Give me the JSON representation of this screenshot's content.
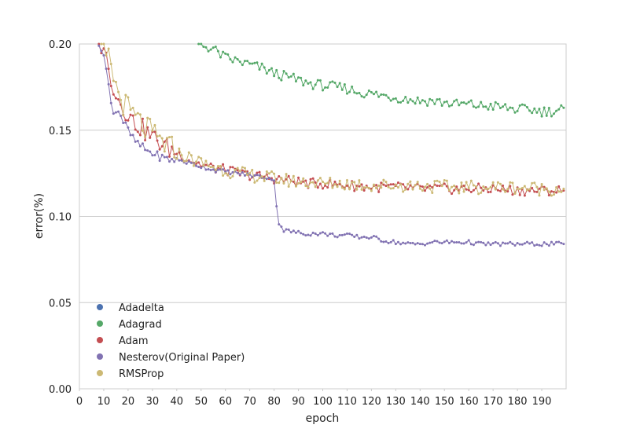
{
  "chart_data": {
    "type": "line",
    "title": "",
    "xlabel": "epoch",
    "ylabel": "error(%)",
    "xlim": [
      0,
      200
    ],
    "ylim": [
      0.0,
      0.2
    ],
    "x_ticks": [
      "0",
      "10",
      "20",
      "30",
      "40",
      "50",
      "60",
      "70",
      "80",
      "90",
      "100",
      "110",
      "120",
      "130",
      "140",
      "150",
      "160",
      "170",
      "180",
      "190"
    ],
    "y_ticks": [
      "0.00",
      "0.05",
      "0.10",
      "0.15",
      "0.20"
    ],
    "grid": "horizontal",
    "legend_position": "lower-left",
    "series": [
      {
        "name": "Adadelta",
        "color": "#4c72b0",
        "points": []
      },
      {
        "name": "Adagrad",
        "color": "#55a868",
        "points": [
          [
            49,
            0.2
          ],
          [
            55,
            0.197
          ],
          [
            60,
            0.192
          ],
          [
            65,
            0.19
          ],
          [
            70,
            0.188
          ],
          [
            75,
            0.186
          ],
          [
            80,
            0.183
          ],
          [
            85,
            0.181
          ],
          [
            90,
            0.179
          ],
          [
            95,
            0.177
          ],
          [
            100,
            0.176
          ],
          [
            105,
            0.175
          ],
          [
            110,
            0.174
          ],
          [
            115,
            0.172
          ],
          [
            120,
            0.171
          ],
          [
            125,
            0.17
          ],
          [
            130,
            0.169
          ],
          [
            135,
            0.168
          ],
          [
            140,
            0.167
          ],
          [
            145,
            0.167
          ],
          [
            150,
            0.166
          ],
          [
            155,
            0.165
          ],
          [
            160,
            0.165
          ],
          [
            165,
            0.164
          ],
          [
            170,
            0.164
          ],
          [
            175,
            0.163
          ],
          [
            180,
            0.162
          ],
          [
            185,
            0.162
          ],
          [
            190,
            0.161
          ],
          [
            195,
            0.161
          ],
          [
            199,
            0.163
          ]
        ]
      },
      {
        "name": "Adam",
        "color": "#c44e52",
        "points": [
          [
            8,
            0.2
          ],
          [
            10,
            0.2
          ],
          [
            12,
            0.184
          ],
          [
            14,
            0.176
          ],
          [
            16,
            0.168
          ],
          [
            18,
            0.163
          ],
          [
            20,
            0.16
          ],
          [
            22,
            0.155
          ],
          [
            25,
            0.152
          ],
          [
            28,
            0.148
          ],
          [
            31,
            0.145
          ],
          [
            34,
            0.142
          ],
          [
            37,
            0.139
          ],
          [
            40,
            0.137
          ],
          [
            45,
            0.133
          ],
          [
            50,
            0.13
          ],
          [
            55,
            0.128
          ],
          [
            60,
            0.127
          ],
          [
            65,
            0.125
          ],
          [
            70,
            0.124
          ],
          [
            75,
            0.123
          ],
          [
            80,
            0.122
          ],
          [
            85,
            0.121
          ],
          [
            90,
            0.12
          ],
          [
            95,
            0.119
          ],
          [
            100,
            0.119
          ],
          [
            110,
            0.118
          ],
          [
            120,
            0.117
          ],
          [
            130,
            0.117
          ],
          [
            140,
            0.116
          ],
          [
            150,
            0.116
          ],
          [
            160,
            0.116
          ],
          [
            170,
            0.116
          ],
          [
            180,
            0.115
          ],
          [
            190,
            0.115
          ],
          [
            199,
            0.115
          ]
        ]
      },
      {
        "name": "Nesterov(Original Paper)",
        "color": "#8172b2",
        "points": [
          [
            8,
            0.199
          ],
          [
            10,
            0.193
          ],
          [
            12,
            0.176
          ],
          [
            14,
            0.16
          ],
          [
            16,
            0.162
          ],
          [
            18,
            0.155
          ],
          [
            20,
            0.15
          ],
          [
            22,
            0.145
          ],
          [
            25,
            0.141
          ],
          [
            28,
            0.138
          ],
          [
            31,
            0.136
          ],
          [
            34,
            0.134
          ],
          [
            37,
            0.133
          ],
          [
            40,
            0.133
          ],
          [
            45,
            0.131
          ],
          [
            50,
            0.129
          ],
          [
            55,
            0.127
          ],
          [
            60,
            0.126
          ],
          [
            65,
            0.125
          ],
          [
            70,
            0.124
          ],
          [
            75,
            0.123
          ],
          [
            79,
            0.122
          ],
          [
            80,
            0.12
          ],
          [
            81,
            0.107
          ],
          [
            82,
            0.096
          ],
          [
            84,
            0.092
          ],
          [
            88,
            0.091
          ],
          [
            92,
            0.09
          ],
          [
            96,
            0.09
          ],
          [
            100,
            0.09
          ],
          [
            105,
            0.089
          ],
          [
            110,
            0.089
          ],
          [
            115,
            0.088
          ],
          [
            120,
            0.088
          ],
          [
            125,
            0.086
          ],
          [
            130,
            0.085
          ],
          [
            135,
            0.084
          ],
          [
            140,
            0.084
          ],
          [
            145,
            0.085
          ],
          [
            150,
            0.085
          ],
          [
            155,
            0.085
          ],
          [
            160,
            0.085
          ],
          [
            165,
            0.084
          ],
          [
            170,
            0.084
          ],
          [
            175,
            0.084
          ],
          [
            180,
            0.084
          ],
          [
            185,
            0.084
          ],
          [
            190,
            0.084
          ],
          [
            195,
            0.084
          ],
          [
            199,
            0.084
          ]
        ]
      },
      {
        "name": "RMSProp",
        "color": "#ccb974",
        "points": [
          [
            9,
            0.2
          ],
          [
            11,
            0.193
          ],
          [
            13,
            0.188
          ],
          [
            15,
            0.175
          ],
          [
            17,
            0.168
          ],
          [
            19,
            0.164
          ],
          [
            21,
            0.16
          ],
          [
            23,
            0.157
          ],
          [
            25,
            0.154
          ],
          [
            28,
            0.15
          ],
          [
            31,
            0.146
          ],
          [
            34,
            0.143
          ],
          [
            37,
            0.14
          ],
          [
            40,
            0.137
          ],
          [
            45,
            0.134
          ],
          [
            50,
            0.131
          ],
          [
            55,
            0.129
          ],
          [
            60,
            0.127
          ],
          [
            65,
            0.125
          ],
          [
            70,
            0.124
          ],
          [
            75,
            0.123
          ],
          [
            80,
            0.122
          ],
          [
            85,
            0.121
          ],
          [
            90,
            0.12
          ],
          [
            95,
            0.12
          ],
          [
            100,
            0.119
          ],
          [
            110,
            0.119
          ],
          [
            120,
            0.118
          ],
          [
            130,
            0.118
          ],
          [
            140,
            0.118
          ],
          [
            150,
            0.117
          ],
          [
            160,
            0.117
          ],
          [
            170,
            0.117
          ],
          [
            180,
            0.117
          ],
          [
            190,
            0.116
          ],
          [
            199,
            0.116
          ]
        ]
      }
    ]
  }
}
